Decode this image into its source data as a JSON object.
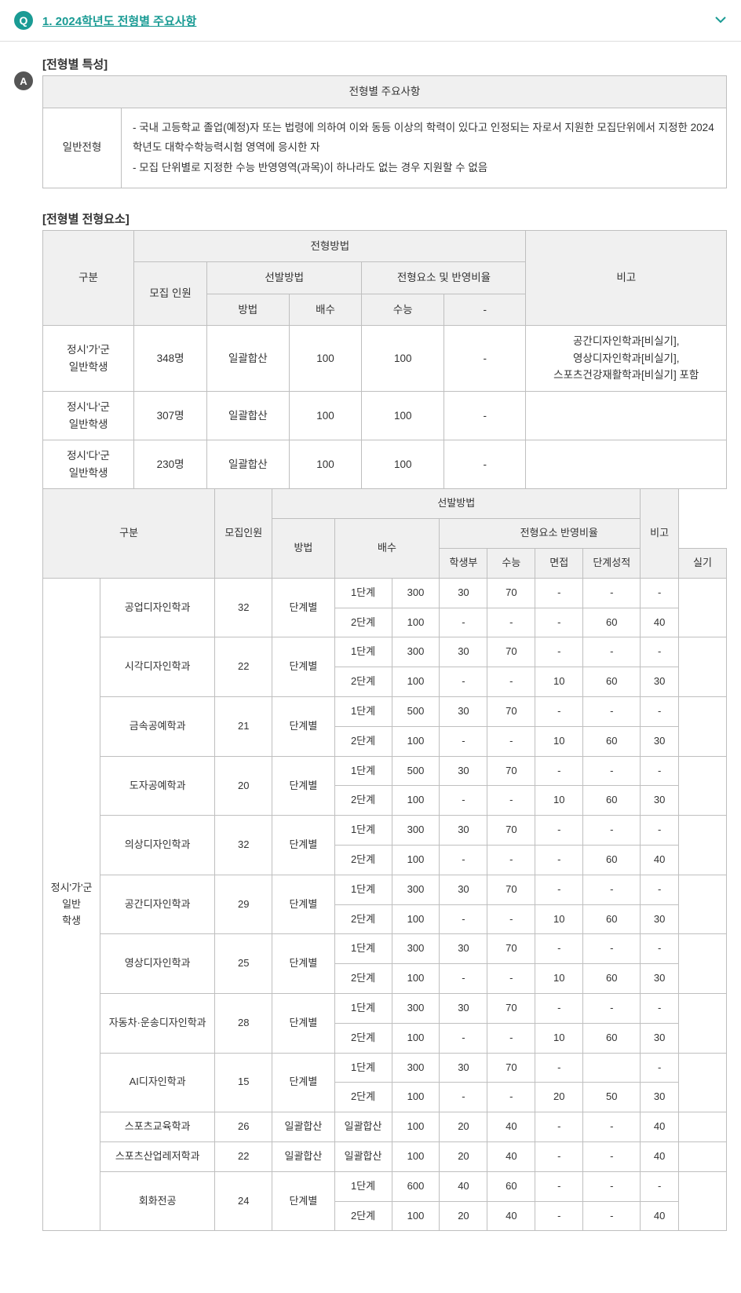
{
  "header": {
    "q_letter": "Q",
    "title": "1. 2024학년도 전형별 주요사항"
  },
  "a_letter": "A",
  "s1": {
    "title": "[전형별 특성]",
    "th": "전형별 주요사항",
    "row_label": "일반전형",
    "b1": "- 국내 고등학교 졸업(예정)자 또는 법령에 의하여 이와 동등 이상의 학력이 있다고 인정되는 자로서 지원한 모집단위에서 지정한 2024학년도 대학수학능력시험 영역에 응시한 자",
    "b2": "- 모집 단위별로 지정한 수능 반영영역(과목)이 하나라도 없는 경우 지원할 수 없음"
  },
  "s2": {
    "title": "[전형별 전형요소]",
    "h": {
      "gubun": "구분",
      "method": "전형방법",
      "note": "비고",
      "mojip": "모집\n인원",
      "seonbal": "선발방법",
      "ratio": "전형요소 및 반영비율",
      "bb": "방법",
      "bs": "배수",
      "sn": "수능",
      "dash": "-"
    },
    "r1": {
      "g": "정시'가'군\n일반학생",
      "m": "348명",
      "b": "일괄합산",
      "bs": "100",
      "sn": "100",
      "d": "-",
      "n": "공간디자인학과[비실기],\n영상디자인학과[비실기],\n스포츠건강재활학과[비실기] 포함"
    },
    "r2": {
      "g": "정시'나'군\n일반학생",
      "m": "307명",
      "b": "일괄합산",
      "bs": "100",
      "sn": "100",
      "d": "-",
      "n": ""
    },
    "r3": {
      "g": "정시'다'군\n일반학생",
      "m": "230명",
      "b": "일괄합산",
      "bs": "100",
      "sn": "100",
      "d": "-",
      "n": ""
    }
  },
  "s3": {
    "h": {
      "gubun": "구분",
      "mojip": "모집인원",
      "seonbal": "선발방법",
      "note": "비고",
      "bb": "방법",
      "bs": "배수",
      "ratio": "전형요소 반영비율",
      "hb": "학생부",
      "sn": "수능",
      "mj": "면접",
      "dg": "단계성적",
      "sk": "실기"
    },
    "group": "정시'가'군\n일반\n학생",
    "rows": [
      {
        "dept": "공업디자인학과",
        "m": "32",
        "b": "단계별",
        "st1": "1단계",
        "bs1": "300",
        "hb1": "30",
        "sn1": "70",
        "mj1": "-",
        "dg1": "-",
        "sk1": "-",
        "st2": "2단계",
        "bs2": "100",
        "hb2": "-",
        "sn2": "-",
        "mj2": "-",
        "dg2": "60",
        "sk2": "40"
      },
      {
        "dept": "시각디자인학과",
        "m": "22",
        "b": "단계별",
        "st1": "1단계",
        "bs1": "300",
        "hb1": "30",
        "sn1": "70",
        "mj1": "-",
        "dg1": "-",
        "sk1": "-",
        "st2": "2단계",
        "bs2": "100",
        "hb2": "-",
        "sn2": "-",
        "mj2": "10",
        "dg2": "60",
        "sk2": "30"
      },
      {
        "dept": "금속공예학과",
        "m": "21",
        "b": "단계별",
        "st1": "1단계",
        "bs1": "500",
        "hb1": "30",
        "sn1": "70",
        "mj1": "-",
        "dg1": "-",
        "sk1": "-",
        "st2": "2단계",
        "bs2": "100",
        "hb2": "-",
        "sn2": "-",
        "mj2": "10",
        "dg2": "60",
        "sk2": "30"
      },
      {
        "dept": "도자공예학과",
        "m": "20",
        "b": "단계별",
        "st1": "1단계",
        "bs1": "500",
        "hb1": "30",
        "sn1": "70",
        "mj1": "-",
        "dg1": "-",
        "sk1": "-",
        "st2": "2단계",
        "bs2": "100",
        "hb2": "-",
        "sn2": "-",
        "mj2": "10",
        "dg2": "60",
        "sk2": "30"
      },
      {
        "dept": "의상디자인학과",
        "m": "32",
        "b": "단계별",
        "st1": "1단계",
        "bs1": "300",
        "hb1": "30",
        "sn1": "70",
        "mj1": "-",
        "dg1": "-",
        "sk1": "-",
        "st2": "2단계",
        "bs2": "100",
        "hb2": "-",
        "sn2": "-",
        "mj2": "-",
        "dg2": "60",
        "sk2": "40"
      },
      {
        "dept": "공간디자인학과",
        "m": "29",
        "b": "단계별",
        "st1": "1단계",
        "bs1": "300",
        "hb1": "30",
        "sn1": "70",
        "mj1": "-",
        "dg1": "-",
        "sk1": "-",
        "st2": "2단계",
        "bs2": "100",
        "hb2": "-",
        "sn2": "-",
        "mj2": "10",
        "dg2": "60",
        "sk2": "30"
      },
      {
        "dept": "영상디자인학과",
        "m": "25",
        "b": "단계별",
        "st1": "1단계",
        "bs1": "300",
        "hb1": "30",
        "sn1": "70",
        "mj1": "-",
        "dg1": "-",
        "sk1": "-",
        "st2": "2단계",
        "bs2": "100",
        "hb2": "-",
        "sn2": "-",
        "mj2": "10",
        "dg2": "60",
        "sk2": "30"
      },
      {
        "dept": "자동차·운송디자인학과",
        "m": "28",
        "b": "단계별",
        "st1": "1단계",
        "bs1": "300",
        "hb1": "30",
        "sn1": "70",
        "mj1": "-",
        "dg1": "-",
        "sk1": "-",
        "st2": "2단계",
        "bs2": "100",
        "hb2": "-",
        "sn2": "-",
        "mj2": "10",
        "dg2": "60",
        "sk2": "30"
      },
      {
        "dept": "AI디자인학과",
        "m": "15",
        "b": "단계별",
        "st1": "1단계",
        "bs1": "300",
        "hb1": "30",
        "sn1": "70",
        "mj1": "-",
        "dg1": "",
        "sk1": "-",
        "st2": "2단계",
        "bs2": "100",
        "hb2": "-",
        "sn2": "-",
        "mj2": "20",
        "dg2": "50",
        "sk2": "30"
      },
      {
        "dept": "스포츠교육학과",
        "m": "26",
        "b": "일괄합산",
        "st1": "일괄합산",
        "bs1": "100",
        "hb1": "20",
        "sn1": "40",
        "mj1": "-",
        "dg1": "-",
        "sk1": "40"
      },
      {
        "dept": "스포츠산업레저학과",
        "m": "22",
        "b": "일괄합산",
        "st1": "일괄합산",
        "bs1": "100",
        "hb1": "20",
        "sn1": "40",
        "mj1": "-",
        "dg1": "-",
        "sk1": "40"
      },
      {
        "dept": "회화전공",
        "m": "24",
        "b": "단계별",
        "st1": "1단계",
        "bs1": "600",
        "hb1": "40",
        "sn1": "60",
        "mj1": "-",
        "dg1": "-",
        "sk1": "-",
        "st2": "2단계",
        "bs2": "100",
        "hb2": "20",
        "sn2": "40",
        "mj2": "-",
        "dg2": "-",
        "sk2": "40"
      }
    ]
  }
}
